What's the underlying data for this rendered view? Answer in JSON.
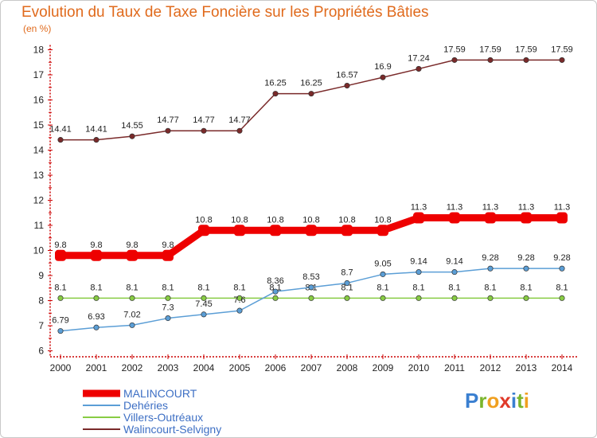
{
  "chart_data": {
    "type": "line",
    "title": "Evolution du Taux de Taxe Foncière sur les Propriétés Bâties",
    "subtitle": "(en %)",
    "xlabel": "",
    "ylabel": "",
    "ylim": [
      6,
      18
    ],
    "yticks": [
      "6",
      "7",
      "8",
      "9",
      "10",
      "11",
      "12",
      "13",
      "14",
      "15",
      "16",
      "17",
      "18"
    ],
    "categories": [
      "2000",
      "2001",
      "2002",
      "2003",
      "2004",
      "2005",
      "2006",
      "2007",
      "2008",
      "2009",
      "2010",
      "2011",
      "2012",
      "2013",
      "2014"
    ],
    "grid": false,
    "legend_position": "bottom-left",
    "series": [
      {
        "name": "Walincourt-Selvigny",
        "color": "#7a2a2a",
        "values": [
          14.41,
          14.41,
          14.55,
          14.77,
          14.77,
          14.77,
          16.25,
          16.25,
          16.57,
          16.9,
          17.24,
          17.59,
          17.59,
          17.59,
          17.59
        ],
        "labels": [
          "14.41",
          "14.41",
          "14.55",
          "14.77",
          "14.77",
          "14.77",
          "16.25",
          "16.25",
          "16.57",
          "16.9",
          "17.24",
          "17.59",
          "17.59",
          "17.59",
          "17.59"
        ]
      },
      {
        "name": "MALINCOURT",
        "color": "#ee0000",
        "values": [
          9.8,
          9.8,
          9.8,
          9.8,
          10.8,
          10.8,
          10.8,
          10.8,
          10.8,
          10.8,
          11.3,
          11.3,
          11.3,
          11.3,
          11.3
        ],
        "labels": [
          "9.8",
          "9.8",
          "9.8",
          "9.8",
          "10.8",
          "10.8",
          "10.8",
          "10.8",
          "10.8",
          "10.8",
          "11.3",
          "11.3",
          "11.3",
          "11.3",
          "11.3"
        ]
      },
      {
        "name": "Villers-Outréaux",
        "color": "#88cc44",
        "values": [
          8.1,
          8.1,
          8.1,
          8.1,
          8.1,
          8.1,
          8.1,
          8.1,
          8.1,
          8.1,
          8.1,
          8.1,
          8.1,
          8.1,
          8.1
        ],
        "labels": [
          "8.1",
          "8.1",
          "8.1",
          "8.1",
          "8.1",
          "8.1",
          "8.1",
          "8.1",
          "8.1",
          "8.1",
          "8.1",
          "8.1",
          "8.1",
          "8.1",
          "8.1"
        ]
      },
      {
        "name": "Dehéries",
        "color": "#5b9ed6",
        "values": [
          6.79,
          6.93,
          7.02,
          7.3,
          7.45,
          7.6,
          8.36,
          8.53,
          8.7,
          9.05,
          9.14,
          9.14,
          9.28,
          9.28,
          9.28
        ],
        "labels": [
          "6.79",
          "6.93",
          "7.02",
          "7.3",
          "7.45",
          "7.6",
          "8.36",
          "8.53",
          "8.7",
          "9.05",
          "9.14",
          "9.14",
          "9.28",
          "9.28",
          "9.28"
        ]
      }
    ],
    "legend": [
      {
        "name": "MALINCOURT",
        "color": "#ee0000"
      },
      {
        "name": "Dehéries",
        "color": "#5b9ed6"
      },
      {
        "name": "Villers-Outréaux",
        "color": "#88cc44"
      },
      {
        "name": "Walincourt-Selvigny",
        "color": "#7a2a2a"
      }
    ]
  },
  "logo": {
    "letters": [
      {
        "ch": "P",
        "color": "#3a7fd0"
      },
      {
        "ch": "r",
        "color": "#7ab52c"
      },
      {
        "ch": "o",
        "color": "#f0a020"
      },
      {
        "ch": "x",
        "color": "#e03a2a"
      },
      {
        "ch": "i",
        "color": "#3a7fd0"
      },
      {
        "ch": "t",
        "color": "#7ab52c"
      },
      {
        "ch": "i",
        "color": "#f0a020"
      }
    ]
  }
}
